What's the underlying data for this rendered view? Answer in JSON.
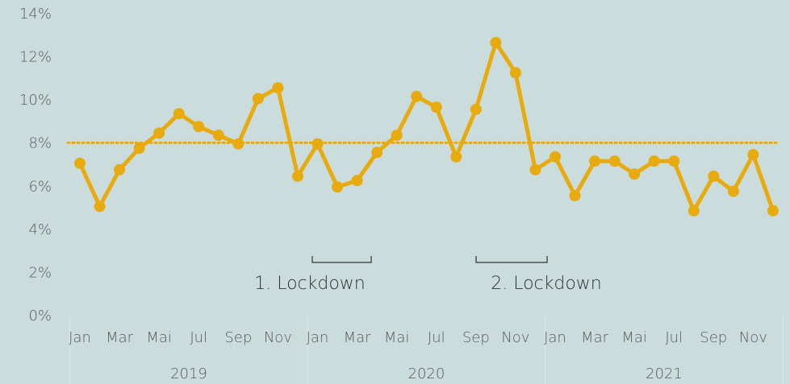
{
  "chart_data": {
    "type": "line",
    "categories": [
      "Jan",
      null,
      "Mar",
      null,
      "Mai",
      null,
      "Jul",
      null,
      "Sep",
      null,
      "Nov",
      null,
      "Jan",
      null,
      "Mar",
      null,
      "Mai",
      null,
      "Jul",
      null,
      "Sep",
      null,
      "Nov",
      null,
      "Jan",
      null,
      "Mar",
      null,
      "Mai",
      null,
      "Jul",
      null,
      "Sep",
      null,
      "Nov",
      null
    ],
    "years": [
      "2019",
      "2020",
      "2021"
    ],
    "series": [
      {
        "color": "#e8ab0f",
        "values": [
          7.1,
          5.1,
          6.8,
          7.8,
          8.5,
          9.4,
          8.8,
          8.4,
          8.0,
          10.1,
          10.6,
          6.5,
          8.0,
          6.0,
          6.3,
          7.6,
          8.4,
          10.2,
          9.7,
          7.4,
          9.6,
          12.7,
          11.3,
          6.8,
          7.4,
          5.6,
          7.2,
          7.2,
          6.6,
          7.2,
          7.2,
          4.9,
          6.5,
          5.8,
          7.5,
          4.9
        ]
      }
    ],
    "average": 8.05,
    "ylim": [
      0,
      14
    ],
    "yticks": [
      {
        "value": 0,
        "label": "0%"
      },
      {
        "value": 2,
        "label": "2%"
      },
      {
        "value": 4,
        "label": "4%"
      },
      {
        "value": 6,
        "label": "6%"
      },
      {
        "value": 8,
        "label": "8%"
      },
      {
        "value": 10,
        "label": "10%"
      },
      {
        "value": 12,
        "label": "12%"
      },
      {
        "value": 14,
        "label": "14%"
      }
    ],
    "annotations": [
      "1. Lockdown",
      "2. Lockdown"
    ]
  }
}
